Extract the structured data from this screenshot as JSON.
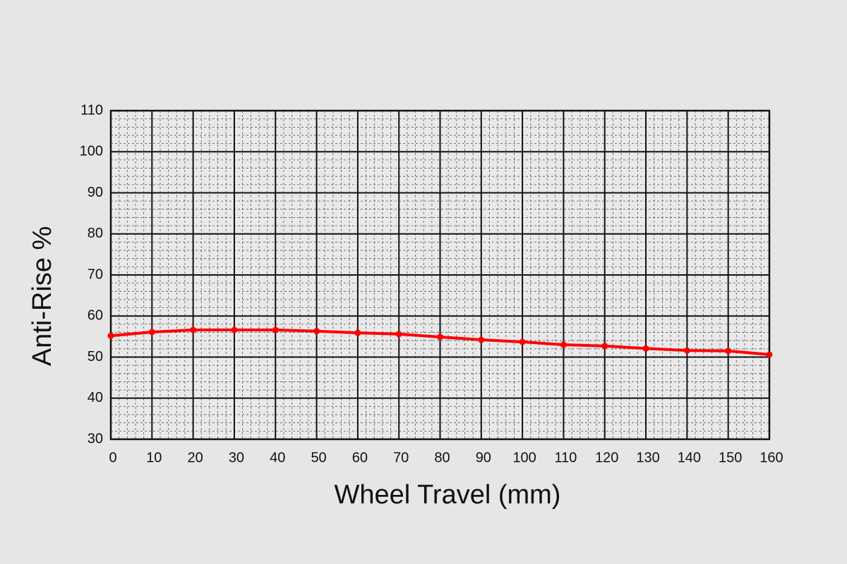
{
  "chart_data": {
    "type": "line",
    "x_label": "Wheel Travel (mm)",
    "y_label": "Anti-Rise %",
    "x": [
      0,
      10,
      20,
      30,
      40,
      50,
      60,
      70,
      80,
      90,
      100,
      110,
      120,
      130,
      140,
      150,
      160
    ],
    "series": [
      {
        "name": "Anti-Rise",
        "color": "#ff0000",
        "values": [
          55.2,
          56.1,
          56.6,
          56.6,
          56.6,
          56.3,
          55.9,
          55.6,
          54.9,
          54.2,
          53.7,
          53.0,
          52.7,
          52.1,
          51.6,
          51.5,
          50.6
        ]
      }
    ],
    "xlim": [
      0,
      160
    ],
    "xticks": [
      0,
      10,
      20,
      30,
      40,
      50,
      60,
      70,
      80,
      90,
      100,
      110,
      120,
      130,
      140,
      150,
      160
    ],
    "ylim": [
      30,
      110
    ],
    "yticks": [
      30,
      40,
      50,
      60,
      70,
      80,
      90,
      100,
      110
    ],
    "grid": true,
    "minor_grid": true
  }
}
